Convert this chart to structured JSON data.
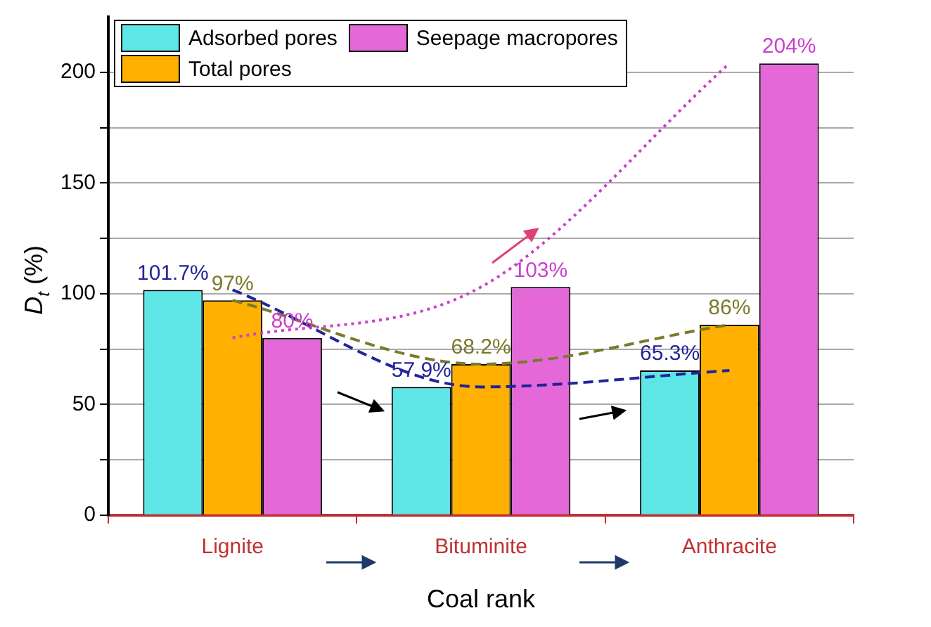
{
  "chart_data": {
    "type": "bar",
    "xlabel": "Coal rank",
    "ylabel": "D$_{t}$ (%)",
    "categories": [
      "Lignite",
      "Bituminite",
      "Anthracite"
    ],
    "ylim": [
      0,
      225
    ],
    "yticks": [
      0,
      {
        "value": 25,
        "label": null
      },
      50,
      {
        "value": 75,
        "label": null
      },
      100,
      {
        "value": 125,
        "label": null
      },
      150,
      {
        "value": 175,
        "label": null
      },
      200
    ],
    "grid": "y",
    "legend": "top left",
    "marker": "none",
    "series": [
      {
        "name": "Adsorbed pores",
        "color": "#5ee6e6",
        "values": [
          101.7,
          57.9,
          65.3
        ]
      },
      {
        "name": "Total pores",
        "color": "#ffb000",
        "values": [
          97,
          68.2,
          86
        ]
      },
      {
        "name": "Seepage macropores",
        "color": "#e468d8",
        "values": [
          80,
          103,
          204
        ]
      },
      {
        "type": "line",
        "color": "#23239a",
        "line_style": "dashed",
        "values": [
          101.7,
          57.9,
          65.3
        ],
        "value_labels": [
          "101.7%",
          "57.9%",
          "65.3%"
        ]
      },
      {
        "type": "line",
        "color": "#7a7a2a",
        "line_style": "dashed",
        "values": [
          97,
          68.2,
          86
        ],
        "value_labels": [
          "97%",
          "68.2%",
          "86%"
        ]
      },
      {
        "type": "line",
        "color": "#cc3fcc",
        "line_style": "dotted",
        "values": [
          80,
          103,
          204
        ],
        "value_labels": [
          "80%",
          "103%",
          "204%"
        ]
      }
    ]
  }
}
